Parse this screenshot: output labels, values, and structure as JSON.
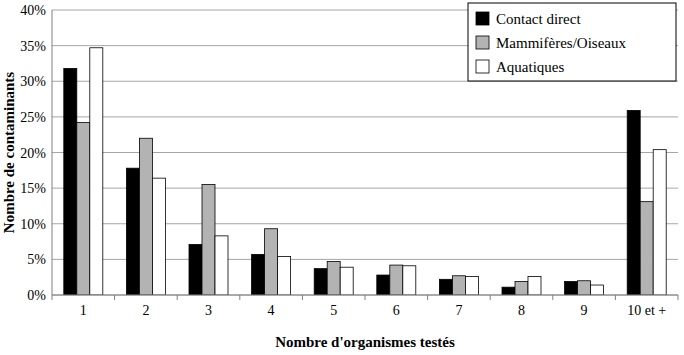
{
  "chart_data": {
    "type": "bar",
    "x_label": "Nombre d'organismes testés",
    "y_label": "Nombre de contaminants",
    "categories": [
      "1",
      "2",
      "3",
      "4",
      "5",
      "6",
      "7",
      "8",
      "9",
      "10 et +"
    ],
    "series": [
      {
        "name": "Contact direct",
        "color": "#000000",
        "values": [
          31.8,
          17.8,
          7.1,
          5.7,
          3.7,
          2.8,
          2.2,
          1.1,
          1.9,
          25.9
        ]
      },
      {
        "name": "Mammifères/Oiseaux",
        "color": "#b3b3b3",
        "values": [
          24.2,
          22.0,
          15.5,
          9.3,
          4.7,
          4.2,
          2.7,
          1.9,
          2.0,
          13.1
        ]
      },
      {
        "name": "Aquatiques",
        "color": "#ffffff",
        "values": [
          34.7,
          16.4,
          8.3,
          5.4,
          3.9,
          4.1,
          2.6,
          2.6,
          1.4,
          20.4
        ]
      }
    ],
    "ylim": [
      0,
      40
    ],
    "yticks": [
      {
        "value": 0,
        "label": "0%"
      },
      {
        "value": 5,
        "label": "5%"
      },
      {
        "value": 10,
        "label": "10%"
      },
      {
        "value": 15,
        "label": "15%"
      },
      {
        "value": 20,
        "label": "20%"
      },
      {
        "value": 25,
        "label": "25%"
      },
      {
        "value": 30,
        "label": "30%"
      },
      {
        "value": 35,
        "label": "35%"
      },
      {
        "value": 40,
        "label": "40%"
      }
    ],
    "grid": true,
    "legend": "top-right"
  }
}
